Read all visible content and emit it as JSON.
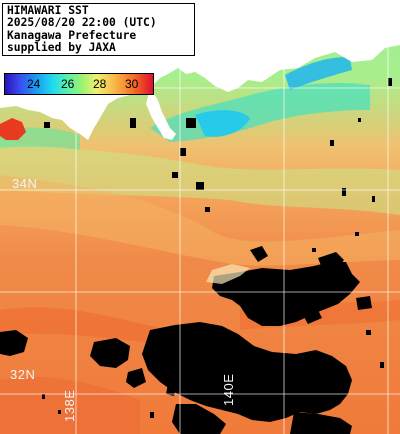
{
  "title": {
    "line1": "HIMAWARI SST",
    "line2": "2025/08/20 22:00 (UTC)",
    "line3": "Kanagawa Prefecture",
    "line4": "supplied by JAXA"
  },
  "legend": {
    "ticks": [
      "24",
      "26",
      "28",
      "30"
    ]
  },
  "grid_labels": {
    "lat_34": "34N",
    "lat_32": "32N",
    "lon_138": "138E",
    "lon_140": "140E"
  },
  "colors": {
    "land_and_cloud": "#000000",
    "grid_lines": "#ffffff",
    "cool_water": "#30d0e8",
    "warm_water": "#f07a3a"
  }
}
